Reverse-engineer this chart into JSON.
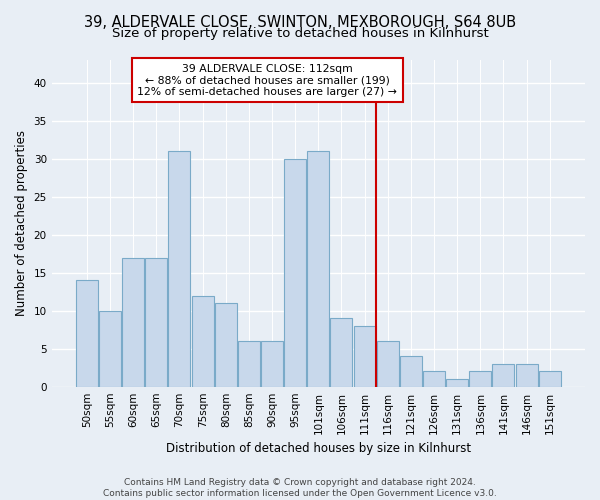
{
  "title1": "39, ALDERVALE CLOSE, SWINTON, MEXBOROUGH, S64 8UB",
  "title2": "Size of property relative to detached houses in Kilnhurst",
  "xlabel": "Distribution of detached houses by size in Kilnhurst",
  "ylabel": "Number of detached properties",
  "footer1": "Contains HM Land Registry data © Crown copyright and database right 2024.",
  "footer2": "Contains public sector information licensed under the Open Government Licence v3.0.",
  "bar_labels": [
    "50sqm",
    "55sqm",
    "60sqm",
    "65sqm",
    "70sqm",
    "75sqm",
    "80sqm",
    "85sqm",
    "90sqm",
    "95sqm",
    "101sqm",
    "106sqm",
    "111sqm",
    "116sqm",
    "121sqm",
    "126sqm",
    "131sqm",
    "136sqm",
    "141sqm",
    "146sqm",
    "151sqm"
  ],
  "bar_values": [
    14,
    10,
    17,
    17,
    31,
    12,
    11,
    6,
    6,
    30,
    31,
    9,
    8,
    6,
    4,
    2,
    1,
    2,
    3,
    3,
    2
  ],
  "bar_color": "#c8d8eb",
  "bar_edge_color": "#7aaac8",
  "vline_index": 12.5,
  "annotation_title": "39 ALDERVALE CLOSE: 112sqm",
  "annotation_line1": "← 88% of detached houses are smaller (199)",
  "annotation_line2": "12% of semi-detached houses are larger (27) →",
  "annotation_box_color": "white",
  "annotation_box_edge": "#cc0000",
  "vline_color": "#cc0000",
  "ylim": [
    0,
    43
  ],
  "yticks": [
    0,
    5,
    10,
    15,
    20,
    25,
    30,
    35,
    40
  ],
  "bg_color": "#e8eef5",
  "grid_color": "white",
  "title_fontsize": 10.5,
  "subtitle_fontsize": 9.5,
  "axis_label_fontsize": 8.5,
  "tick_fontsize": 7.5,
  "footer_fontsize": 6.5
}
